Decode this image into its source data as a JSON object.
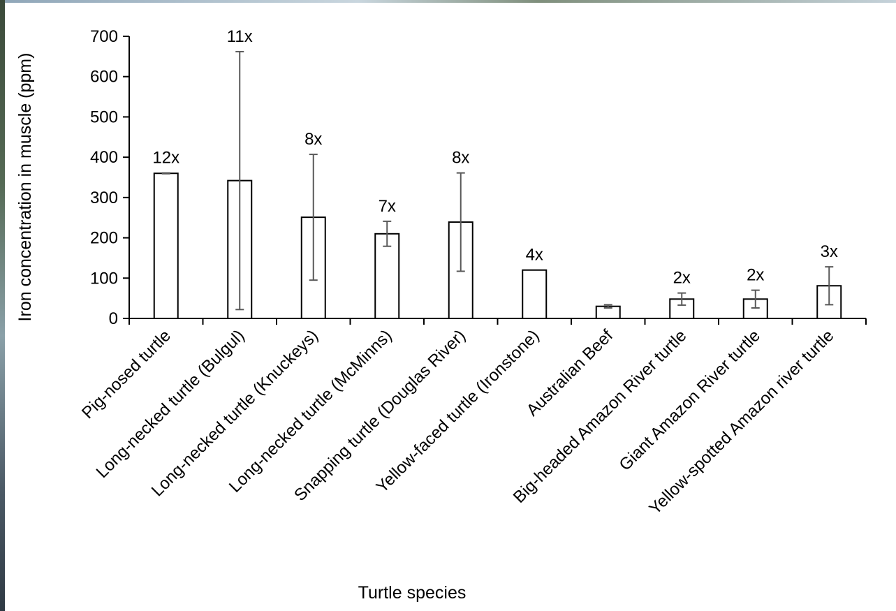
{
  "chart_data": {
    "type": "bar",
    "xlabel": "Turtle species",
    "ylabel": "Iron concentration in muscle (ppm)",
    "ylim": [
      0,
      700
    ],
    "yticks": [
      "0",
      "100",
      "200",
      "300",
      "400",
      "500",
      "600",
      "700"
    ],
    "categories": [
      "Pig-nosed turtle",
      "Long-necked turtle (Bulgul)",
      "Long-necked turtle (Knuckeys)",
      "Long-necked turtle (McMinns)",
      "Snapping turtle (Douglas River)",
      "Yellow-faced turtle (Ironstone)",
      "Australian Beef",
      "Big-headed Amazon River turtle",
      "Giant Amazon River turtle",
      "Yellow-spotted Amazon river turtle"
    ],
    "values": [
      360,
      342,
      251,
      210,
      239,
      120,
      30,
      48,
      48,
      81
    ],
    "error": [
      1,
      320,
      156,
      31,
      122,
      0,
      4,
      15,
      22,
      47
    ],
    "labels": [
      "12x",
      "11x",
      "8x",
      "7x",
      "8x",
      "4x",
      "",
      "2x",
      "2x",
      "3x"
    ],
    "grid": false,
    "legend": "none",
    "colors": {
      "bar_fill": "#ffffff",
      "bar_stroke": "#000000",
      "error_bar": "#595959",
      "axis": "#000000"
    }
  }
}
